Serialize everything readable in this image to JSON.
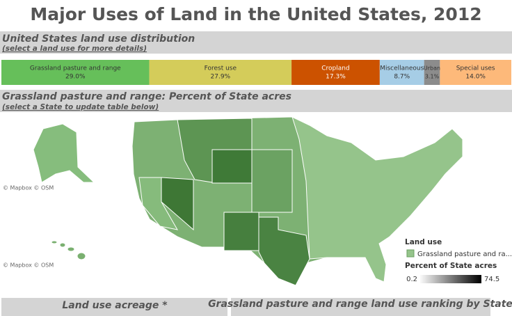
{
  "title": "Major Uses of Land in the United States, 2012",
  "chart_data": {
    "type": "stacked-bar",
    "title": "United States land use distribution",
    "subtitle": "(select a land use for more details)",
    "series": [
      {
        "name": "Grassland pasture and range",
        "color": "#66bf5a",
        "values": [
          29.0
        ],
        "value_labels": [
          "29.0%"
        ]
      },
      {
        "name": "Forest use",
        "color": "#d4cc5a",
        "values": [
          27.9
        ],
        "value_labels": [
          "27.9%"
        ]
      },
      {
        "name": "Cropland",
        "color": "#cc5200",
        "values": [
          17.3
        ],
        "value_labels": [
          "17.3%"
        ]
      },
      {
        "name": "Miscellaneous",
        "color": "#a6cde6",
        "values": [
          8.7
        ],
        "value_labels": [
          "8.7%"
        ]
      },
      {
        "name": "Urban",
        "color": "#8c8c8c",
        "values": [
          3.1
        ],
        "value_labels": [
          "3.1%"
        ]
      },
      {
        "name": "Special uses",
        "color": "#fdb97a",
        "values": [
          14.0
        ],
        "value_labels": [
          "14.0%"
        ]
      }
    ]
  },
  "map": {
    "title": "Grassland pasture and range: Percent of State acres",
    "subtitle": "(select a State to update table below)",
    "attribution": "© Mapbox © OSM",
    "legend": {
      "title": "Land use",
      "item": "Grassland pasture and ra...",
      "scale_title": "Percent of State acres",
      "min": 0.2,
      "max": 74.5
    }
  },
  "tables": [
    "Land use acreage *",
    "Grassland pasture and range land use ranking by State"
  ]
}
